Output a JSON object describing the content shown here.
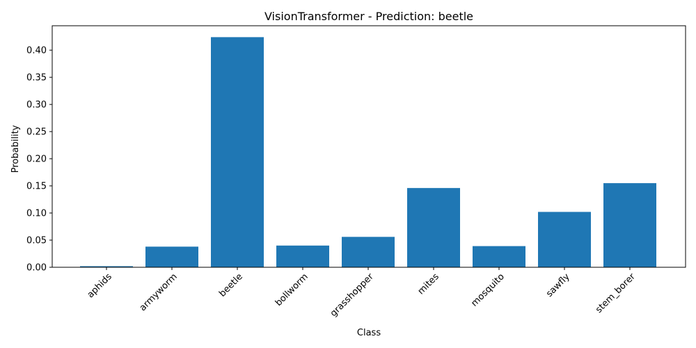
{
  "chart_data": {
    "type": "bar",
    "title": "VisionTransformer - Prediction: beetle",
    "xlabel": "Class",
    "ylabel": "Probability",
    "categories": [
      "aphids",
      "armyworm",
      "beetle",
      "bollworm",
      "grasshopper",
      "mites",
      "mosquito",
      "sawfly",
      "stem_borer"
    ],
    "values": [
      0.002,
      0.038,
      0.424,
      0.04,
      0.056,
      0.146,
      0.039,
      0.102,
      0.155
    ],
    "ylim": [
      0,
      0.445
    ],
    "yticks": [
      0.0,
      0.05,
      0.1,
      0.15,
      0.2,
      0.25,
      0.3,
      0.35,
      0.4
    ],
    "ytick_labels": [
      "0.00",
      "0.05",
      "0.10",
      "0.15",
      "0.20",
      "0.25",
      "0.30",
      "0.35",
      "0.40"
    ],
    "bar_color": "#1f77b4",
    "grid": false,
    "xtick_rotation_deg": 45
  }
}
